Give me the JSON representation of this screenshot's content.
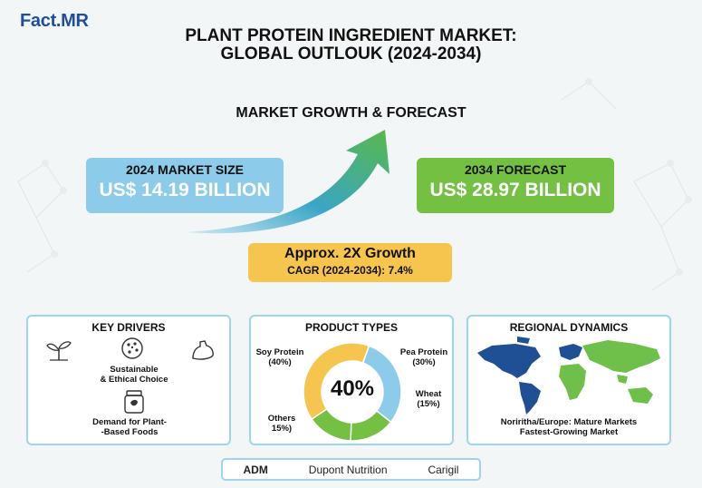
{
  "brand": {
    "name": "Fact.MR"
  },
  "header": {
    "title_line1": "PLANT PROTEIN INGREDIENT MARKET:",
    "title_line2": "GLOBAL OUTLOUK (2024-2034)"
  },
  "growth": {
    "heading": "MARKET GROWTH & FORECAST",
    "size_label": "2024 MARKET SIZE",
    "size_value": "US$ 14.19 BILLION",
    "forecast_label": "2034 FORECAST",
    "forecast_value": "US$ 28.97 BILLION",
    "growth_text": "Approx. 2X Growth",
    "cagr_text": "CAGR (2024-2034): 7.4%"
  },
  "drivers": {
    "title": "KEY DRIVERS",
    "items": [
      {
        "label_line1": "Sustainable",
        "label_line2": "& Ethical Choice"
      },
      {
        "label_line1": "Demand for Plant-",
        "label_line2": "-Based Foods"
      }
    ],
    "icons": [
      "plant-sprout-icon",
      "cookie-icon",
      "muscle-arm-icon",
      "protein-jar-icon"
    ]
  },
  "products": {
    "title": "PRODUCT TYPES",
    "center_label": "40%",
    "labels": [
      {
        "line1": "Soy Protein",
        "line2": "(40%)"
      },
      {
        "line1": "Pea Protein",
        "line2": "(30%)"
      },
      {
        "line1": "Wheat",
        "line2": "(15%)"
      },
      {
        "line1": "Others",
        "line2": "15%)"
      }
    ]
  },
  "regional": {
    "title": "REGIONAL DYNAMICS",
    "line1": "Noriritha/Europe: Mature Markets",
    "line2": "Fastest-Growing Market"
  },
  "companies": [
    "ADM",
    "Dupont Nutrition",
    "Carigil"
  ],
  "colors": {
    "blue": "#8ccbe9",
    "green": "#74c043",
    "yellow": "#f6c54e",
    "navy": "#1e4e9c"
  },
  "chart_data": [
    {
      "type": "pie",
      "categories": [
        "Soy Protein",
        "Pea Protein",
        "Wheat",
        "Others"
      ],
      "values": [
        40,
        30,
        15,
        15
      ],
      "colors": [
        "#f6c54e",
        "#8ccbe9",
        "#74c043",
        "#74c043"
      ]
    },
    {
      "type": "line",
      "x": [
        2024,
        2034
      ],
      "values": [
        14.19,
        28.97
      ],
      "ylabel": "US$ BILLION"
    }
  ]
}
